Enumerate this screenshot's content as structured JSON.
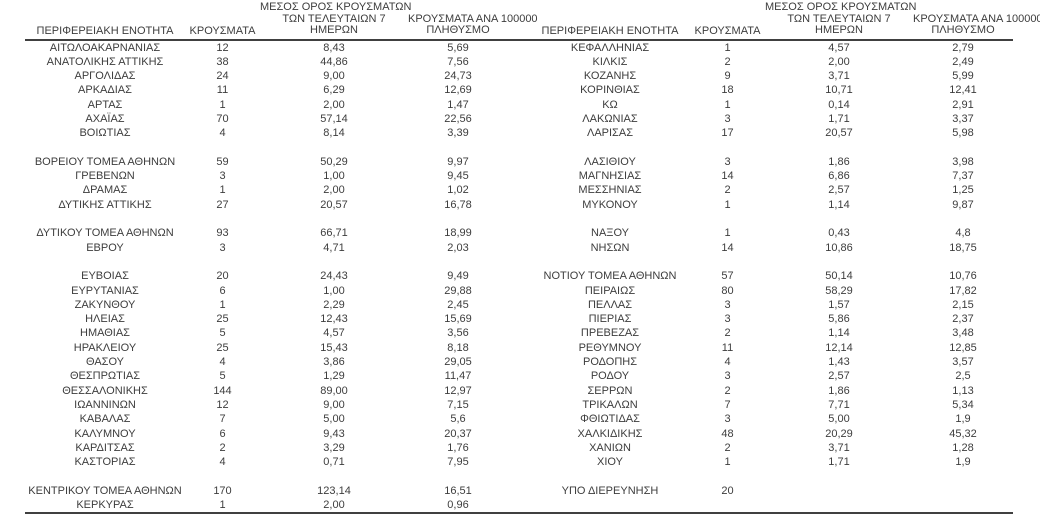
{
  "columns": {
    "region": "ΠΕΡΙΦΕΡΕΙΑΚΗ ΕΝΟΤΗΤΑ",
    "cases": "ΚΡΟΥΣΜΑΤΑ",
    "avg7_lines": [
      "ΜΕΣΟΣ ΟΡΟΣ ΚΡΟΥΣΜΑΤΩΝ",
      "ΤΩΝ ΤΕΛΕΥΤΑΙΩΝ 7",
      "ΗΜΕΡΩΝ"
    ],
    "per100k_lines": [
      "ΚΡΟΥΣΜΑΤΑ ΑΝΑ 100000",
      "ΠΛΗΘΥΣΜΟ"
    ]
  },
  "colors": {
    "text": "#3d3d3d",
    "rule": "#404040",
    "background": "#ffffff"
  },
  "left_rows": [
    [
      "ΑΙΤΩΛΟΑΚΑΡΝΑΝΙΑΣ",
      "12",
      "8,43",
      "5,69"
    ],
    [
      "ΑΝΑΤΟΛΙΚΗΣ ΑΤΤΙΚΗΣ",
      "38",
      "44,86",
      "7,56"
    ],
    [
      "ΑΡΓΟΛΙΔΑΣ",
      "24",
      "9,00",
      "24,73"
    ],
    [
      "ΑΡΚΑΔΙΑΣ",
      "11",
      "6,29",
      "12,69"
    ],
    [
      "ΑΡΤΑΣ",
      "1",
      "2,00",
      "1,47"
    ],
    [
      "ΑΧΑΪΑΣ",
      "70",
      "57,14",
      "22,56"
    ],
    [
      "ΒΟΙΩΤΙΑΣ",
      "4",
      "8,14",
      "3,39"
    ],
    [
      "",
      "",
      "",
      ""
    ],
    [
      "ΒΟΡΕΙΟΥ ΤΟΜΕΑ ΑΘΗΝΩΝ",
      "59",
      "50,29",
      "9,97"
    ],
    [
      "ΓΡΕΒΕΝΩΝ",
      "3",
      "1,00",
      "9,45"
    ],
    [
      "ΔΡΑΜΑΣ",
      "1",
      "2,00",
      "1,02"
    ],
    [
      "ΔΥΤΙΚΗΣ ΑΤΤΙΚΗΣ",
      "27",
      "20,57",
      "16,78"
    ],
    [
      "",
      "",
      "",
      ""
    ],
    [
      "ΔΥΤΙΚΟΥ ΤΟΜΕΑ ΑΘΗΝΩΝ",
      "93",
      "66,71",
      "18,99"
    ],
    [
      "ΕΒΡΟΥ",
      "3",
      "4,71",
      "2,03"
    ],
    [
      "",
      "",
      "",
      ""
    ],
    [
      "ΕΥΒΟΙΑΣ",
      "20",
      "24,43",
      "9,49"
    ],
    [
      "ΕΥΡΥΤΑΝΙΑΣ",
      "6",
      "1,00",
      "29,88"
    ],
    [
      "ΖΑΚΥΝΘΟΥ",
      "1",
      "2,29",
      "2,45"
    ],
    [
      "ΗΛΕΙΑΣ",
      "25",
      "12,43",
      "15,69"
    ],
    [
      "ΗΜΑΘΙΑΣ",
      "5",
      "4,57",
      "3,56"
    ],
    [
      "ΗΡΑΚΛΕΙΟΥ",
      "25",
      "15,43",
      "8,18"
    ],
    [
      "ΘΑΣΟΥ",
      "4",
      "3,86",
      "29,05"
    ],
    [
      "ΘΕΣΠΡΩΤΙΑΣ",
      "5",
      "1,29",
      "11,47"
    ],
    [
      "ΘΕΣΣΑΛΟΝΙΚΗΣ",
      "144",
      "89,00",
      "12,97"
    ],
    [
      "ΙΩΑΝΝΙΝΩΝ",
      "12",
      "9,00",
      "7,15"
    ],
    [
      "ΚΑΒΑΛΑΣ",
      "7",
      "5,00",
      "5,6"
    ],
    [
      "ΚΑΛΥΜΝΟΥ",
      "6",
      "9,43",
      "20,37"
    ],
    [
      "ΚΑΡΔΙΤΣΑΣ",
      "2",
      "3,29",
      "1,76"
    ],
    [
      "ΚΑΣΤΟΡΙΑΣ",
      "4",
      "0,71",
      "7,95"
    ],
    [
      "",
      "",
      "",
      ""
    ],
    [
      "ΚΕΝΤΡΙΚΟΥ ΤΟΜΕΑ ΑΘΗΝΩΝ",
      "170",
      "123,14",
      "16,51"
    ],
    [
      "ΚΕΡΚΥΡΑΣ",
      "1",
      "2,00",
      "0,96"
    ]
  ],
  "right_rows": [
    [
      "ΚΕΦΑΛΛΗΝΙΑΣ",
      "1",
      "4,57",
      "2,79"
    ],
    [
      "ΚΙΛΚΙΣ",
      "2",
      "2,00",
      "2,49"
    ],
    [
      "ΚΟΖΑΝΗΣ",
      "9",
      "3,71",
      "5,99"
    ],
    [
      "ΚΟΡΙΝΘΙΑΣ",
      "18",
      "10,71",
      "12,41"
    ],
    [
      "ΚΩ",
      "1",
      "0,14",
      "2,91"
    ],
    [
      "ΛΑΚΩΝΙΑΣ",
      "3",
      "1,71",
      "3,37"
    ],
    [
      "ΛΑΡΙΣΑΣ",
      "17",
      "20,57",
      "5,98"
    ],
    [
      "",
      "",
      "",
      ""
    ],
    [
      "ΛΑΣΙΘΙΟΥ",
      "3",
      "1,86",
      "3,98"
    ],
    [
      "ΜΑΓΝΗΣΙΑΣ",
      "14",
      "6,86",
      "7,37"
    ],
    [
      "ΜΕΣΣΗΝΙΑΣ",
      "2",
      "2,57",
      "1,25"
    ],
    [
      "ΜΥΚΟΝΟΥ",
      "1",
      "1,14",
      "9,87"
    ],
    [
      "",
      "",
      "",
      ""
    ],
    [
      "ΝΑΞΟΥ",
      "1",
      "0,43",
      "4,8"
    ],
    [
      "ΝΗΣΩΝ",
      "14",
      "10,86",
      "18,75"
    ],
    [
      "",
      "",
      "",
      ""
    ],
    [
      "ΝΟΤΙΟΥ ΤΟΜΕΑ ΑΘΗΝΩΝ",
      "57",
      "50,14",
      "10,76"
    ],
    [
      "ΠΕΙΡΑΙΩΣ",
      "80",
      "58,29",
      "17,82"
    ],
    [
      "ΠΕΛΛΑΣ",
      "3",
      "1,57",
      "2,15"
    ],
    [
      "ΠΙΕΡΙΑΣ",
      "3",
      "5,86",
      "2,37"
    ],
    [
      "ΠΡΕΒΕΖΑΣ",
      "2",
      "1,14",
      "3,48"
    ],
    [
      "ΡΕΘΥΜΝΟΥ",
      "11",
      "12,14",
      "12,85"
    ],
    [
      "ΡΟΔΟΠΗΣ",
      "4",
      "1,43",
      "3,57"
    ],
    [
      "ΡΟΔΟΥ",
      "3",
      "2,57",
      "2,5"
    ],
    [
      "ΣΕΡΡΩΝ",
      "2",
      "1,86",
      "1,13"
    ],
    [
      "ΤΡΙΚΑΛΩΝ",
      "7",
      "7,71",
      "5,34"
    ],
    [
      "ΦΘΙΩΤΙΔΑΣ",
      "3",
      "5,00",
      "1,9"
    ],
    [
      "ΧΑΛΚΙΔΙΚΗΣ",
      "48",
      "20,29",
      "45,32"
    ],
    [
      "ΧΑΝΙΩΝ",
      "2",
      "3,71",
      "1,28"
    ],
    [
      "ΧΙΟΥ",
      "1",
      "1,71",
      "1,9"
    ],
    [
      "",
      "",
      "",
      ""
    ],
    [
      "ΥΠΟ ΔΙΕΡΕΥΝΗΣΗ",
      "20",
      "",
      ""
    ],
    [
      "",
      "",
      "",
      ""
    ]
  ]
}
